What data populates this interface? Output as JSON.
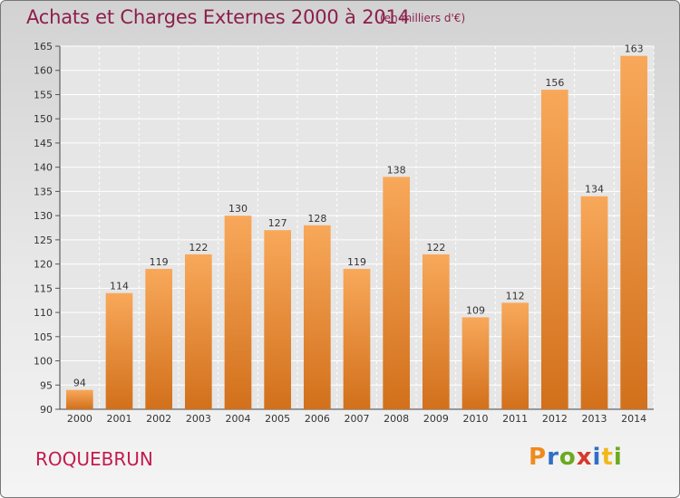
{
  "header": {
    "title": "Achats et Charges Externes 2000 à 2014",
    "unit": "(en milliers d'€)"
  },
  "footer": {
    "place": "ROQUEBRUN",
    "logo": {
      "text": "Proxiti",
      "colors": [
        "#f08a1d",
        "#2f6fc6",
        "#6aaa1f",
        "#d63a2a",
        "#2f6fc6",
        "#f0b81d",
        "#6aaa1f"
      ]
    }
  },
  "colors": {
    "bar_light": "#f8a85a",
    "bar_dark": "#d2701b",
    "title": "#8c1f4a",
    "place": "#c41b4f"
  },
  "chart_data": {
    "type": "bar",
    "title": "Achats et Charges Externes 2000 à 2014",
    "subtitle": "(en milliers d'€)",
    "xlabel": "",
    "ylabel": "",
    "categories": [
      "2000",
      "2001",
      "2002",
      "2003",
      "2004",
      "2005",
      "2006",
      "2007",
      "2008",
      "2009",
      "2010",
      "2011",
      "2012",
      "2013",
      "2014"
    ],
    "values": [
      94,
      114,
      119,
      122,
      130,
      127,
      128,
      119,
      138,
      122,
      109,
      112,
      156,
      134,
      163
    ],
    "ylim": [
      90,
      165
    ],
    "yticks": [
      90,
      95,
      100,
      105,
      110,
      115,
      120,
      125,
      130,
      135,
      140,
      145,
      150,
      155,
      160,
      165
    ],
    "grid": true,
    "legend": "none"
  }
}
